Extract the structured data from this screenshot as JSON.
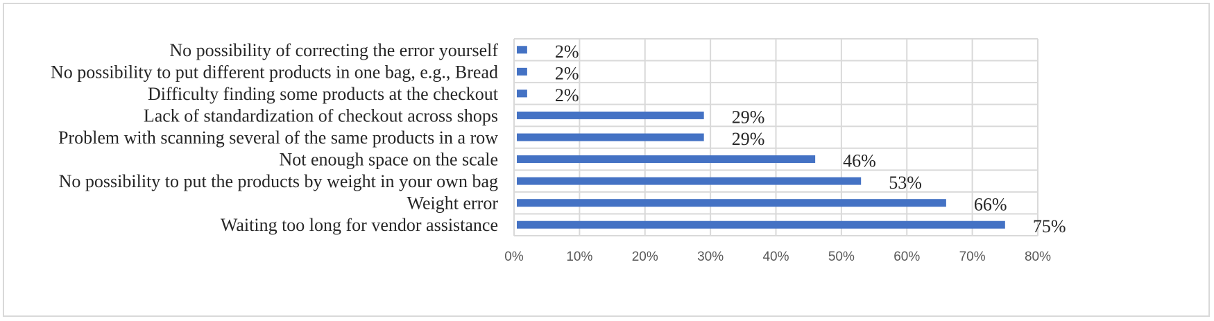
{
  "chart_data": {
    "type": "bar",
    "orientation": "horizontal",
    "title": "",
    "xlabel": "",
    "ylabel": "",
    "categories": [
      "No possibility of correcting the error yourself",
      "No possibility to put different products in one bag, e.g., Bread",
      "Difficulty finding some products at the checkout",
      "Lack of standardization of checkout across shops",
      "Problem with scanning several of the same products in a row",
      "Not enough space on the scale",
      "No possibility to put the products by weight in your own bag",
      "Weight error",
      "Waiting too long for vendor assistance"
    ],
    "values": [
      2,
      2,
      2,
      29,
      29,
      46,
      53,
      66,
      75
    ],
    "data_labels": [
      "2%",
      "2%",
      "2%",
      "29%",
      "29%",
      "46%",
      "53%",
      "66%",
      "75%"
    ],
    "xlim": [
      0,
      80
    ],
    "x_ticks": [
      "0%",
      "10%",
      "20%",
      "30%",
      "40%",
      "50%",
      "60%",
      "70%",
      "80%"
    ],
    "grid": true,
    "legend": "none",
    "bar_color": "#4472c4",
    "grid_color": "#d9d9d9"
  }
}
